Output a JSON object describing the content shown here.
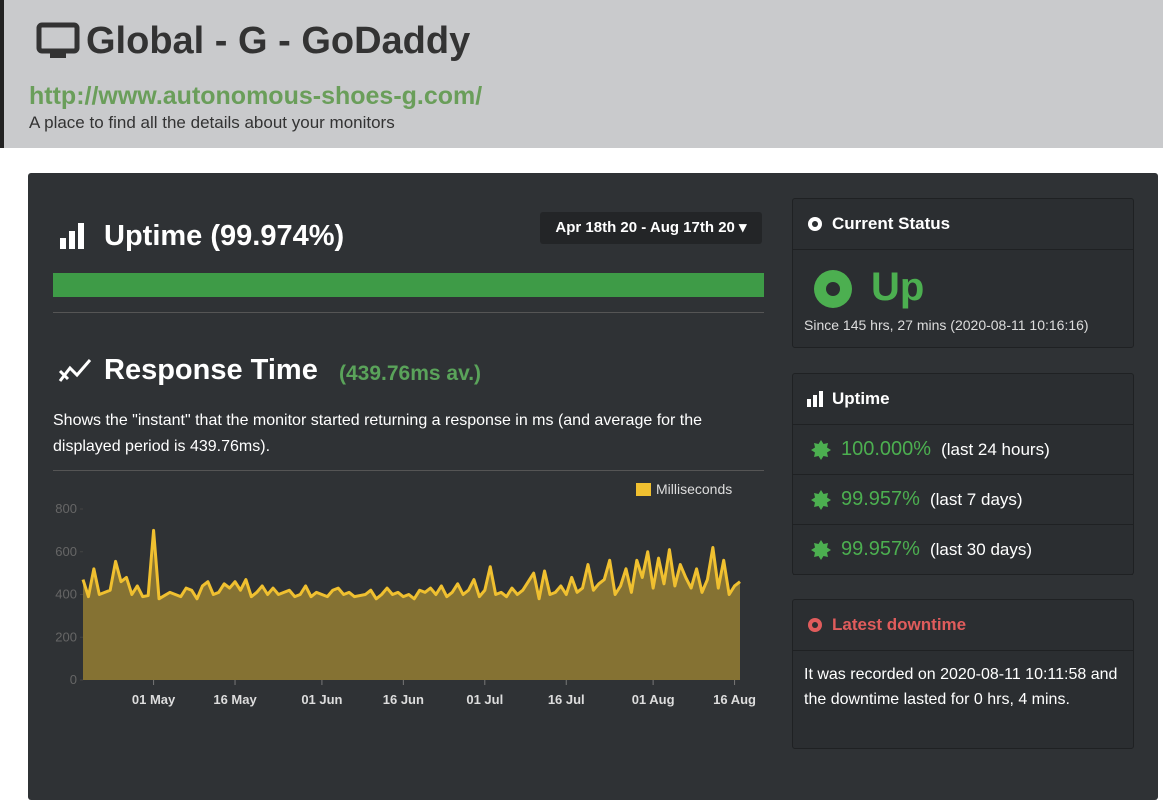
{
  "header": {
    "title": "Global - G - GoDaddy",
    "url": "http://www.autonomous-shoes-g.com/",
    "subtitle": "A place to find all the details about your monitors"
  },
  "uptime_panel": {
    "title": "Uptime (99.974%)",
    "date_range": "Apr 18th 20 - Aug 17th 20"
  },
  "response_panel": {
    "title": "Response Time",
    "average": "(439.76ms av.)",
    "description": "Shows the \"instant\" that the monitor started returning a response in ms (and average for the displayed period is 439.76ms)."
  },
  "chart_data": {
    "type": "area",
    "x": [
      "18 Apr",
      "19 Apr",
      "20 Apr",
      "21 Apr",
      "22 Apr",
      "23 Apr",
      "24 Apr",
      "25 Apr",
      "26 Apr",
      "27 Apr",
      "28 Apr",
      "29 Apr",
      "30 Apr",
      "01 May",
      "02 May",
      "03 May",
      "04 May",
      "05 May",
      "06 May",
      "07 May",
      "08 May",
      "09 May",
      "10 May",
      "11 May",
      "12 May",
      "13 May",
      "14 May",
      "15 May",
      "16 May",
      "17 May",
      "18 May",
      "19 May",
      "20 May",
      "21 May",
      "22 May",
      "23 May",
      "24 May",
      "25 May",
      "26 May",
      "27 May",
      "28 May",
      "29 May",
      "30 May",
      "31 May",
      "01 Jun",
      "02 Jun",
      "03 Jun",
      "04 Jun",
      "05 Jun",
      "06 Jun",
      "07 Jun",
      "08 Jun",
      "09 Jun",
      "10 Jun",
      "11 Jun",
      "12 Jun",
      "13 Jun",
      "14 Jun",
      "15 Jun",
      "16 Jun",
      "17 Jun",
      "18 Jun",
      "19 Jun",
      "20 Jun",
      "21 Jun",
      "22 Jun",
      "23 Jun",
      "24 Jun",
      "25 Jun",
      "26 Jun",
      "27 Jun",
      "28 Jun",
      "29 Jun",
      "30 Jun",
      "01 Jul",
      "02 Jul",
      "03 Jul",
      "04 Jul",
      "05 Jul",
      "06 Jul",
      "07 Jul",
      "08 Jul",
      "09 Jul",
      "10 Jul",
      "11 Jul",
      "12 Jul",
      "13 Jul",
      "14 Jul",
      "15 Jul",
      "16 Jul",
      "17 Jul",
      "18 Jul",
      "19 Jul",
      "20 Jul",
      "21 Jul",
      "22 Jul",
      "23 Jul",
      "24 Jul",
      "25 Jul",
      "26 Jul",
      "27 Jul",
      "28 Jul",
      "29 Jul",
      "30 Jul",
      "31 Jul",
      "01 Aug",
      "02 Aug",
      "03 Aug",
      "04 Aug",
      "05 Aug",
      "06 Aug",
      "07 Aug",
      "08 Aug",
      "09 Aug",
      "10 Aug",
      "11 Aug",
      "12 Aug",
      "13 Aug",
      "14 Aug",
      "15 Aug",
      "16 Aug",
      "17 Aug"
    ],
    "series": [
      {
        "name": "Milliseconds",
        "color": "#f0c030",
        "values": [
          470,
          390,
          520,
          400,
          410,
          420,
          555,
          460,
          480,
          400,
          440,
          390,
          395,
          700,
          380,
          395,
          410,
          400,
          390,
          430,
          420,
          380,
          440,
          460,
          400,
          410,
          450,
          430,
          460,
          420,
          470,
          390,
          410,
          440,
          400,
          430,
          400,
          410,
          420,
          390,
          400,
          440,
          390,
          410,
          400,
          390,
          420,
          430,
          400,
          410,
          390,
          395,
          400,
          420,
          380,
          400,
          430,
          400,
          410,
          390,
          400,
          380,
          420,
          410,
          430,
          400,
          440,
          390,
          410,
          450,
          400,
          420,
          470,
          390,
          420,
          530,
          400,
          410,
          390,
          430,
          400,
          420,
          460,
          500,
          380,
          510,
          400,
          410,
          440,
          400,
          480,
          410,
          430,
          540,
          420,
          450,
          470,
          560,
          400,
          440,
          520,
          410,
          560,
          480,
          600,
          430,
          570,
          450,
          610,
          440,
          540,
          480,
          430,
          520,
          410,
          470,
          620,
          430,
          560,
          400,
          440,
          460
        ]
      }
    ],
    "xticks": [
      "01 May",
      "16 May",
      "01 Jun",
      "16 Jun",
      "01 Jul",
      "16 Jul",
      "01 Aug",
      "16 Aug"
    ],
    "ylim": [
      0,
      800
    ],
    "yticks": [
      0,
      200,
      400,
      600,
      800
    ]
  },
  "current_status": {
    "title": "Current Status",
    "status": "Up",
    "since": "Since 145 hrs, 27 mins (2020-08-11 10:16:16)"
  },
  "uptime_stats": {
    "title": "Uptime",
    "rows": [
      {
        "value": "100.000%",
        "period": "(last 24 hours)"
      },
      {
        "value": "99.957%",
        "period": "(last 7 days)"
      },
      {
        "value": "99.957%",
        "period": "(last 30 days)"
      }
    ]
  },
  "latest_downtime": {
    "title": "Latest downtime",
    "text": "It was recorded on 2020-08-11 10:11:58 and the downtime lasted for 0 hrs, 4 mins."
  }
}
